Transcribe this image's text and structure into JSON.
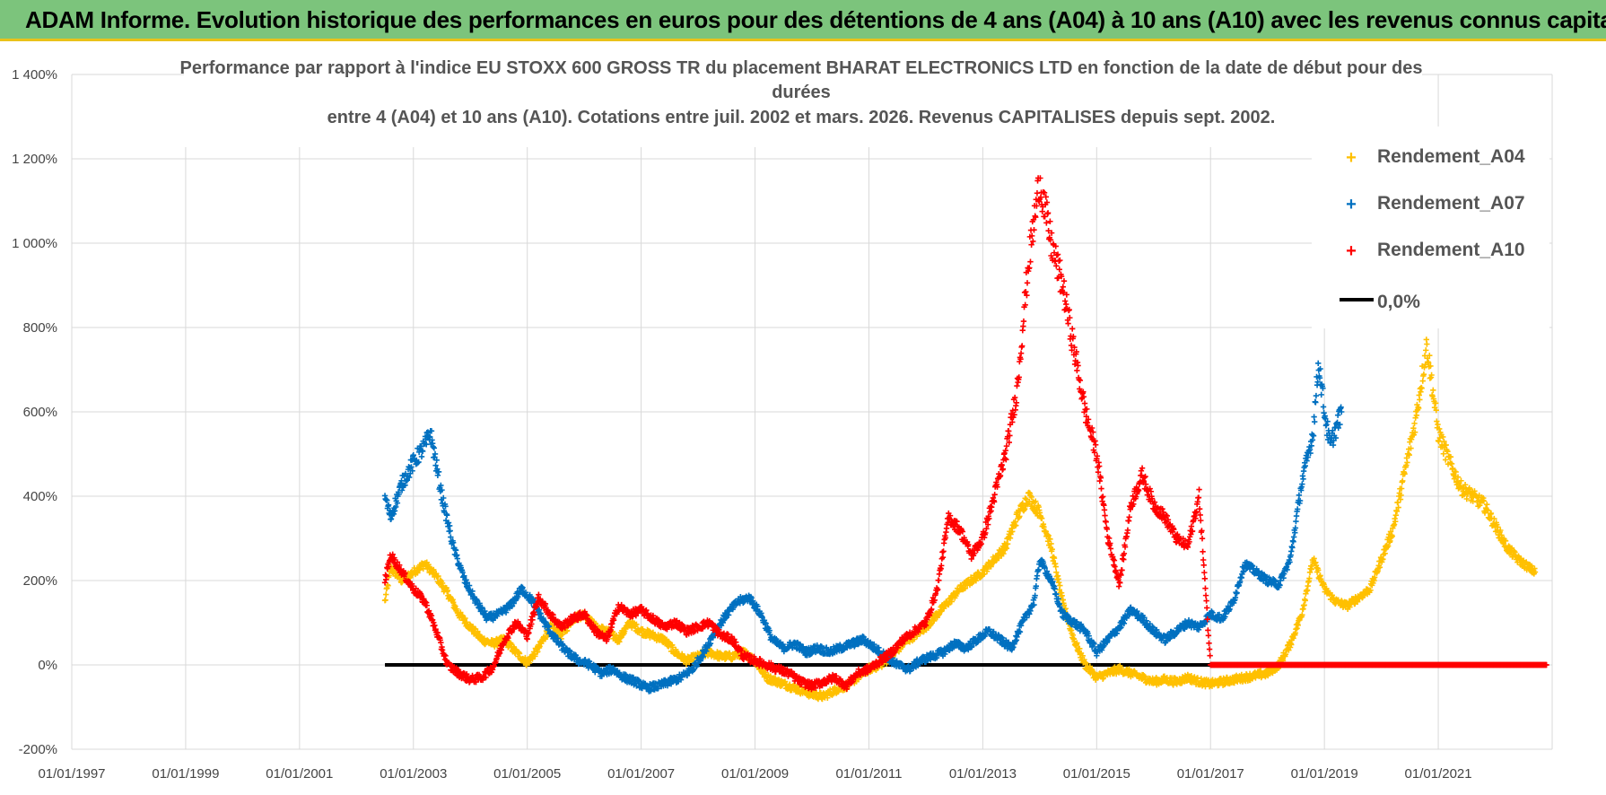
{
  "header": {
    "title": "ADAM Informe. Evolution historique des performances en euros pour des détentions de 4 ans (A04) à 10 ans (A10) avec les revenus connus capitalisés"
  },
  "chart_data": {
    "type": "scatter",
    "title_lines": [
      "Performance par rapport à l'indice EU STOXX 600 GROSS TR  du placement BHARAT ELECTRONICS LTD en fonction de la date de début pour des",
      "durées",
      "entre 4 (A04) et 10 ans (A10). Cotations entre juil. 2002 et mars. 2026. Revenus CAPITALISES depuis sept. 2002."
    ],
    "xlabel": "",
    "ylabel": "",
    "x_range": [
      1997.0,
      2023.0
    ],
    "ylim": [
      -200,
      1400
    ],
    "y_ticks": [
      {
        "value": 1400,
        "label": "1 400%"
      },
      {
        "value": 1200,
        "label": "1 200%"
      },
      {
        "value": 1000,
        "label": "1 000%"
      },
      {
        "value": 800,
        "label": "800%"
      },
      {
        "value": 600,
        "label": "600%"
      },
      {
        "value": 400,
        "label": "400%"
      },
      {
        "value": 200,
        "label": "200%"
      },
      {
        "value": 0,
        "label": "0%"
      },
      {
        "value": -200,
        "label": "-200%"
      }
    ],
    "x_ticks": [
      {
        "value": 1997,
        "label": "01/01/1997"
      },
      {
        "value": 1999,
        "label": "01/01/1999"
      },
      {
        "value": 2001,
        "label": "01/01/2001"
      },
      {
        "value": 2003,
        "label": "01/01/2003"
      },
      {
        "value": 2005,
        "label": "01/01/2005"
      },
      {
        "value": 2007,
        "label": "01/01/2007"
      },
      {
        "value": 2009,
        "label": "01/01/2009"
      },
      {
        "value": 2011,
        "label": "01/01/2011"
      },
      {
        "value": 2013,
        "label": "01/01/2013"
      },
      {
        "value": 2015,
        "label": "01/01/2015"
      },
      {
        "value": 2017,
        "label": "01/01/2017"
      },
      {
        "value": 2019,
        "label": "01/01/2019"
      },
      {
        "value": 2021,
        "label": "01/01/2021"
      }
    ],
    "grid": true,
    "legend_position": "top-right",
    "series": [
      {
        "name": "Rendement_A04",
        "color": "#ffc000",
        "marker": "+",
        "points": [
          [
            2002.5,
            150
          ],
          [
            2002.6,
            230
          ],
          [
            2002.8,
            200
          ],
          [
            2003.0,
            220
          ],
          [
            2003.2,
            240
          ],
          [
            2003.4,
            210
          ],
          [
            2003.6,
            170
          ],
          [
            2003.8,
            120
          ],
          [
            2004.0,
            90
          ],
          [
            2004.2,
            60
          ],
          [
            2004.4,
            50
          ],
          [
            2004.6,
            60
          ],
          [
            2004.8,
            30
          ],
          [
            2005.0,
            5
          ],
          [
            2005.2,
            40
          ],
          [
            2005.4,
            90
          ],
          [
            2005.6,
            70
          ],
          [
            2005.8,
            110
          ],
          [
            2006.0,
            120
          ],
          [
            2006.2,
            90
          ],
          [
            2006.4,
            80
          ],
          [
            2006.6,
            60
          ],
          [
            2006.8,
            100
          ],
          [
            2007.0,
            80
          ],
          [
            2007.2,
            70
          ],
          [
            2007.4,
            60
          ],
          [
            2007.6,
            30
          ],
          [
            2007.8,
            10
          ],
          [
            2008.0,
            20
          ],
          [
            2008.2,
            30
          ],
          [
            2008.4,
            20
          ],
          [
            2008.6,
            20
          ],
          [
            2008.8,
            30
          ],
          [
            2009.0,
            10
          ],
          [
            2009.2,
            -30
          ],
          [
            2009.4,
            -40
          ],
          [
            2009.6,
            -50
          ],
          [
            2009.8,
            -60
          ],
          [
            2010.0,
            -70
          ],
          [
            2010.2,
            -75
          ],
          [
            2010.4,
            -60
          ],
          [
            2010.6,
            -50
          ],
          [
            2010.8,
            -30
          ],
          [
            2011.0,
            -10
          ],
          [
            2011.2,
            0
          ],
          [
            2011.4,
            20
          ],
          [
            2011.6,
            50
          ],
          [
            2011.8,
            70
          ],
          [
            2012.0,
            90
          ],
          [
            2012.2,
            120
          ],
          [
            2012.4,
            150
          ],
          [
            2012.6,
            180
          ],
          [
            2012.8,
            200
          ],
          [
            2013.0,
            220
          ],
          [
            2013.2,
            250
          ],
          [
            2013.4,
            280
          ],
          [
            2013.6,
            350
          ],
          [
            2013.8,
            400
          ],
          [
            2014.0,
            360
          ],
          [
            2014.2,
            280
          ],
          [
            2014.4,
            150
          ],
          [
            2014.6,
            60
          ],
          [
            2014.8,
            0
          ],
          [
            2015.0,
            -30
          ],
          [
            2015.2,
            -20
          ],
          [
            2015.4,
            -10
          ],
          [
            2015.6,
            -20
          ],
          [
            2015.8,
            -30
          ],
          [
            2016.0,
            -40
          ],
          [
            2016.2,
            -35
          ],
          [
            2016.4,
            -40
          ],
          [
            2016.6,
            -30
          ],
          [
            2016.8,
            -40
          ],
          [
            2017.0,
            -45
          ],
          [
            2017.2,
            -40
          ],
          [
            2017.4,
            -35
          ],
          [
            2017.6,
            -30
          ],
          [
            2017.8,
            -25
          ],
          [
            2018.0,
            -20
          ],
          [
            2018.2,
            0
          ],
          [
            2018.4,
            50
          ],
          [
            2018.6,
            120
          ],
          [
            2018.8,
            250
          ],
          [
            2019.0,
            180
          ],
          [
            2019.2,
            150
          ],
          [
            2019.4,
            140
          ],
          [
            2019.6,
            160
          ],
          [
            2019.8,
            180
          ],
          [
            2020.0,
            250
          ],
          [
            2020.2,
            320
          ],
          [
            2020.4,
            450
          ],
          [
            2020.6,
            580
          ],
          [
            2020.8,
            760
          ],
          [
            2021.0,
            550
          ],
          [
            2021.2,
            480
          ],
          [
            2021.4,
            420
          ],
          [
            2021.6,
            400
          ],
          [
            2021.8,
            380
          ],
          [
            2022.0,
            330
          ],
          [
            2022.2,
            280
          ],
          [
            2022.4,
            250
          ],
          [
            2022.6,
            230
          ],
          [
            2022.7,
            220
          ]
        ]
      },
      {
        "name": "Rendement_A07",
        "color": "#0070c0",
        "marker": "+",
        "points": [
          [
            2002.5,
            400
          ],
          [
            2002.6,
            350
          ],
          [
            2002.8,
            430
          ],
          [
            2003.0,
            480
          ],
          [
            2003.2,
            520
          ],
          [
            2003.3,
            550
          ],
          [
            2003.5,
            400
          ],
          [
            2003.7,
            280
          ],
          [
            2003.9,
            200
          ],
          [
            2004.1,
            150
          ],
          [
            2004.3,
            110
          ],
          [
            2004.5,
            120
          ],
          [
            2004.7,
            140
          ],
          [
            2004.9,
            180
          ],
          [
            2005.1,
            150
          ],
          [
            2005.3,
            100
          ],
          [
            2005.5,
            60
          ],
          [
            2005.7,
            30
          ],
          [
            2005.9,
            10
          ],
          [
            2006.1,
            0
          ],
          [
            2006.3,
            -20
          ],
          [
            2006.5,
            -10
          ],
          [
            2006.7,
            -30
          ],
          [
            2006.9,
            -40
          ],
          [
            2007.1,
            -55
          ],
          [
            2007.3,
            -50
          ],
          [
            2007.5,
            -40
          ],
          [
            2007.7,
            -30
          ],
          [
            2007.9,
            -10
          ],
          [
            2008.1,
            30
          ],
          [
            2008.3,
            80
          ],
          [
            2008.5,
            120
          ],
          [
            2008.7,
            150
          ],
          [
            2008.9,
            160
          ],
          [
            2009.1,
            120
          ],
          [
            2009.3,
            60
          ],
          [
            2009.5,
            40
          ],
          [
            2009.7,
            50
          ],
          [
            2009.9,
            30
          ],
          [
            2010.1,
            40
          ],
          [
            2010.3,
            30
          ],
          [
            2010.5,
            40
          ],
          [
            2010.7,
            50
          ],
          [
            2010.9,
            60
          ],
          [
            2011.1,
            40
          ],
          [
            2011.3,
            20
          ],
          [
            2011.5,
            0
          ],
          [
            2011.7,
            -10
          ],
          [
            2011.9,
            10
          ],
          [
            2012.1,
            20
          ],
          [
            2012.3,
            30
          ],
          [
            2012.5,
            50
          ],
          [
            2012.7,
            40
          ],
          [
            2012.9,
            60
          ],
          [
            2013.1,
            80
          ],
          [
            2013.3,
            60
          ],
          [
            2013.5,
            40
          ],
          [
            2013.7,
            100
          ],
          [
            2013.9,
            150
          ],
          [
            2014.0,
            250
          ],
          [
            2014.2,
            200
          ],
          [
            2014.4,
            120
          ],
          [
            2014.6,
            100
          ],
          [
            2014.8,
            80
          ],
          [
            2015.0,
            30
          ],
          [
            2015.2,
            60
          ],
          [
            2015.4,
            90
          ],
          [
            2015.6,
            130
          ],
          [
            2015.8,
            110
          ],
          [
            2016.0,
            80
          ],
          [
            2016.2,
            60
          ],
          [
            2016.4,
            80
          ],
          [
            2016.6,
            100
          ],
          [
            2016.8,
            90
          ],
          [
            2017.0,
            120
          ],
          [
            2017.2,
            110
          ],
          [
            2017.4,
            150
          ],
          [
            2017.6,
            240
          ],
          [
            2017.8,
            220
          ],
          [
            2018.0,
            200
          ],
          [
            2018.2,
            190
          ],
          [
            2018.4,
            250
          ],
          [
            2018.6,
            430
          ],
          [
            2018.8,
            550
          ],
          [
            2018.9,
            720
          ],
          [
            2019.0,
            600
          ],
          [
            2019.1,
            520
          ],
          [
            2019.2,
            560
          ],
          [
            2019.3,
            600
          ]
        ]
      },
      {
        "name": "Rendement_A10",
        "color": "#ff0000",
        "marker": "+",
        "points": [
          [
            2002.5,
            200
          ],
          [
            2002.6,
            260
          ],
          [
            2002.8,
            220
          ],
          [
            2003.0,
            180
          ],
          [
            2003.2,
            150
          ],
          [
            2003.4,
            80
          ],
          [
            2003.6,
            0
          ],
          [
            2003.8,
            -20
          ],
          [
            2004.0,
            -35
          ],
          [
            2004.2,
            -30
          ],
          [
            2004.4,
            -5
          ],
          [
            2004.6,
            60
          ],
          [
            2004.8,
            100
          ],
          [
            2005.0,
            70
          ],
          [
            2005.2,
            160
          ],
          [
            2005.4,
            120
          ],
          [
            2005.6,
            90
          ],
          [
            2005.8,
            110
          ],
          [
            2006.0,
            120
          ],
          [
            2006.2,
            80
          ],
          [
            2006.4,
            60
          ],
          [
            2006.6,
            140
          ],
          [
            2006.8,
            120
          ],
          [
            2007.0,
            130
          ],
          [
            2007.2,
            110
          ],
          [
            2007.4,
            90
          ],
          [
            2007.6,
            100
          ],
          [
            2007.8,
            80
          ],
          [
            2008.0,
            90
          ],
          [
            2008.2,
            100
          ],
          [
            2008.4,
            70
          ],
          [
            2008.6,
            60
          ],
          [
            2008.8,
            20
          ],
          [
            2009.0,
            10
          ],
          [
            2009.2,
            0
          ],
          [
            2009.4,
            -10
          ],
          [
            2009.6,
            -20
          ],
          [
            2009.8,
            -40
          ],
          [
            2010.0,
            -50
          ],
          [
            2010.2,
            -40
          ],
          [
            2010.4,
            -30
          ],
          [
            2010.6,
            -50
          ],
          [
            2010.8,
            -20
          ],
          [
            2011.0,
            -10
          ],
          [
            2011.2,
            10
          ],
          [
            2011.4,
            30
          ],
          [
            2011.6,
            60
          ],
          [
            2011.8,
            80
          ],
          [
            2012.0,
            100
          ],
          [
            2012.2,
            180
          ],
          [
            2012.4,
            350
          ],
          [
            2012.6,
            320
          ],
          [
            2012.8,
            260
          ],
          [
            2013.0,
            300
          ],
          [
            2013.2,
            400
          ],
          [
            2013.4,
            500
          ],
          [
            2013.6,
            650
          ],
          [
            2013.8,
            950
          ],
          [
            2014.0,
            1150
          ],
          [
            2014.2,
            1000
          ],
          [
            2014.4,
            900
          ],
          [
            2014.6,
            750
          ],
          [
            2014.8,
            600
          ],
          [
            2015.0,
            500
          ],
          [
            2015.2,
            300
          ],
          [
            2015.4,
            190
          ],
          [
            2015.6,
            380
          ],
          [
            2015.8,
            450
          ],
          [
            2016.0,
            380
          ],
          [
            2016.2,
            350
          ],
          [
            2016.4,
            300
          ],
          [
            2016.6,
            280
          ],
          [
            2016.8,
            400
          ],
          [
            2017.0,
            0
          ],
          [
            2018.0,
            0
          ],
          [
            2019.0,
            0
          ],
          [
            2020.0,
            0
          ],
          [
            2021.0,
            0
          ],
          [
            2022.0,
            0
          ],
          [
            2022.9,
            0
          ]
        ]
      }
    ],
    "reference_line": {
      "name": "0,0%",
      "color": "#000000",
      "value": 0,
      "x_start": 2002.5,
      "x_end": 2017.0
    }
  }
}
